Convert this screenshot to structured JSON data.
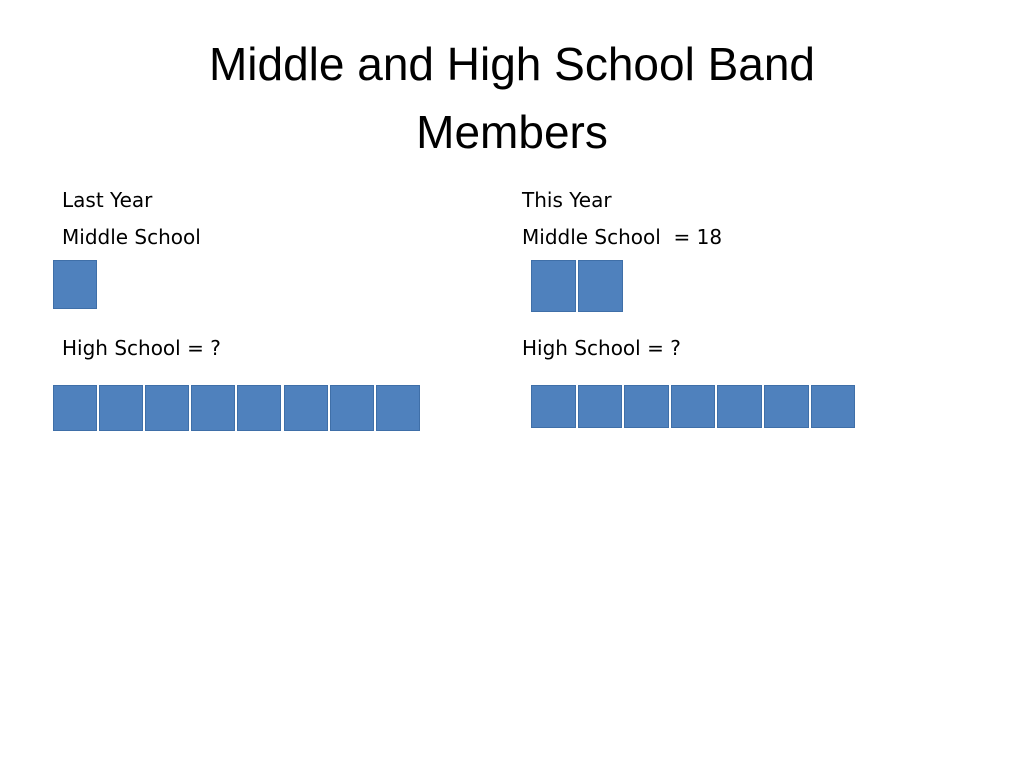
{
  "title": "Middle and High School Band Members",
  "panels": [
    {
      "heading": "Last Year",
      "middle_school": {
        "label": "Middle School",
        "units": 1
      },
      "high_school": {
        "label": "High School = ?",
        "units": 8
      }
    },
    {
      "heading": "This Year",
      "middle_school": {
        "label": "Middle School  = 18",
        "units": 2
      },
      "high_school": {
        "label": "High School = ?",
        "units": 7
      }
    }
  ]
}
